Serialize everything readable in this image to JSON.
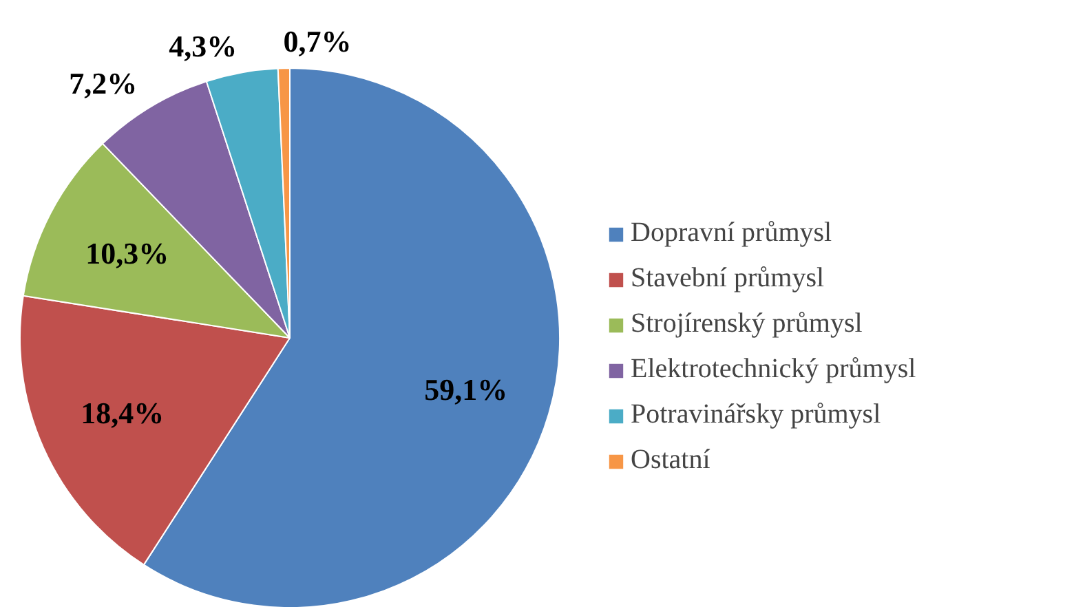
{
  "chart_data": {
    "type": "pie",
    "categories": [
      "Dopravní průmysl",
      "Stavební průmysl",
      "Strojírenský průmysl",
      "Elektrotechnický průmysl",
      "Potravinářsky průmysl",
      "Ostatní"
    ],
    "values": [
      59.1,
      18.4,
      10.3,
      7.2,
      4.3,
      0.7
    ],
    "colors": [
      "#4f81bd",
      "#c0504d",
      "#9bbb59",
      "#8064a2",
      "#4bacc6",
      "#f79646"
    ],
    "value_labels": [
      "59,1%",
      "18,4%",
      "10,3%",
      "7,2%",
      "4,3%",
      "0,7%"
    ],
    "legend": "right"
  }
}
